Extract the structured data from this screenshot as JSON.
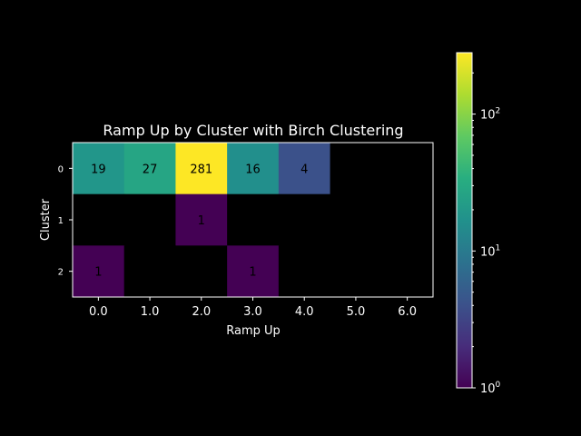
{
  "chart_data": {
    "type": "heatmap",
    "title": "Ramp Up by Cluster with Birch Clustering",
    "xlabel": "Ramp Up",
    "ylabel": "Cluster",
    "x_categories": [
      "0.0",
      "1.0",
      "2.0",
      "3.0",
      "4.0",
      "5.0",
      "6.0"
    ],
    "y_categories": [
      "0",
      "1",
      "2"
    ],
    "values": [
      [
        19,
        27,
        281,
        16,
        4,
        null,
        null
      ],
      [
        null,
        null,
        1,
        null,
        null,
        null,
        null
      ],
      [
        1,
        null,
        null,
        1,
        null,
        null,
        null
      ]
    ],
    "colorbar": {
      "scale": "log",
      "range": [
        1,
        281
      ],
      "colormap": "viridis",
      "tick_values": [
        1,
        10,
        100
      ],
      "tick_labels": [
        "10^0",
        "10^1",
        "10^2"
      ]
    },
    "grid": false,
    "legend": "none",
    "colors": {
      "background": "#000000",
      "empty_cell": "#000000",
      "frame": "#ffffff",
      "text": "#ffffff",
      "cell_label": "#000000"
    }
  }
}
